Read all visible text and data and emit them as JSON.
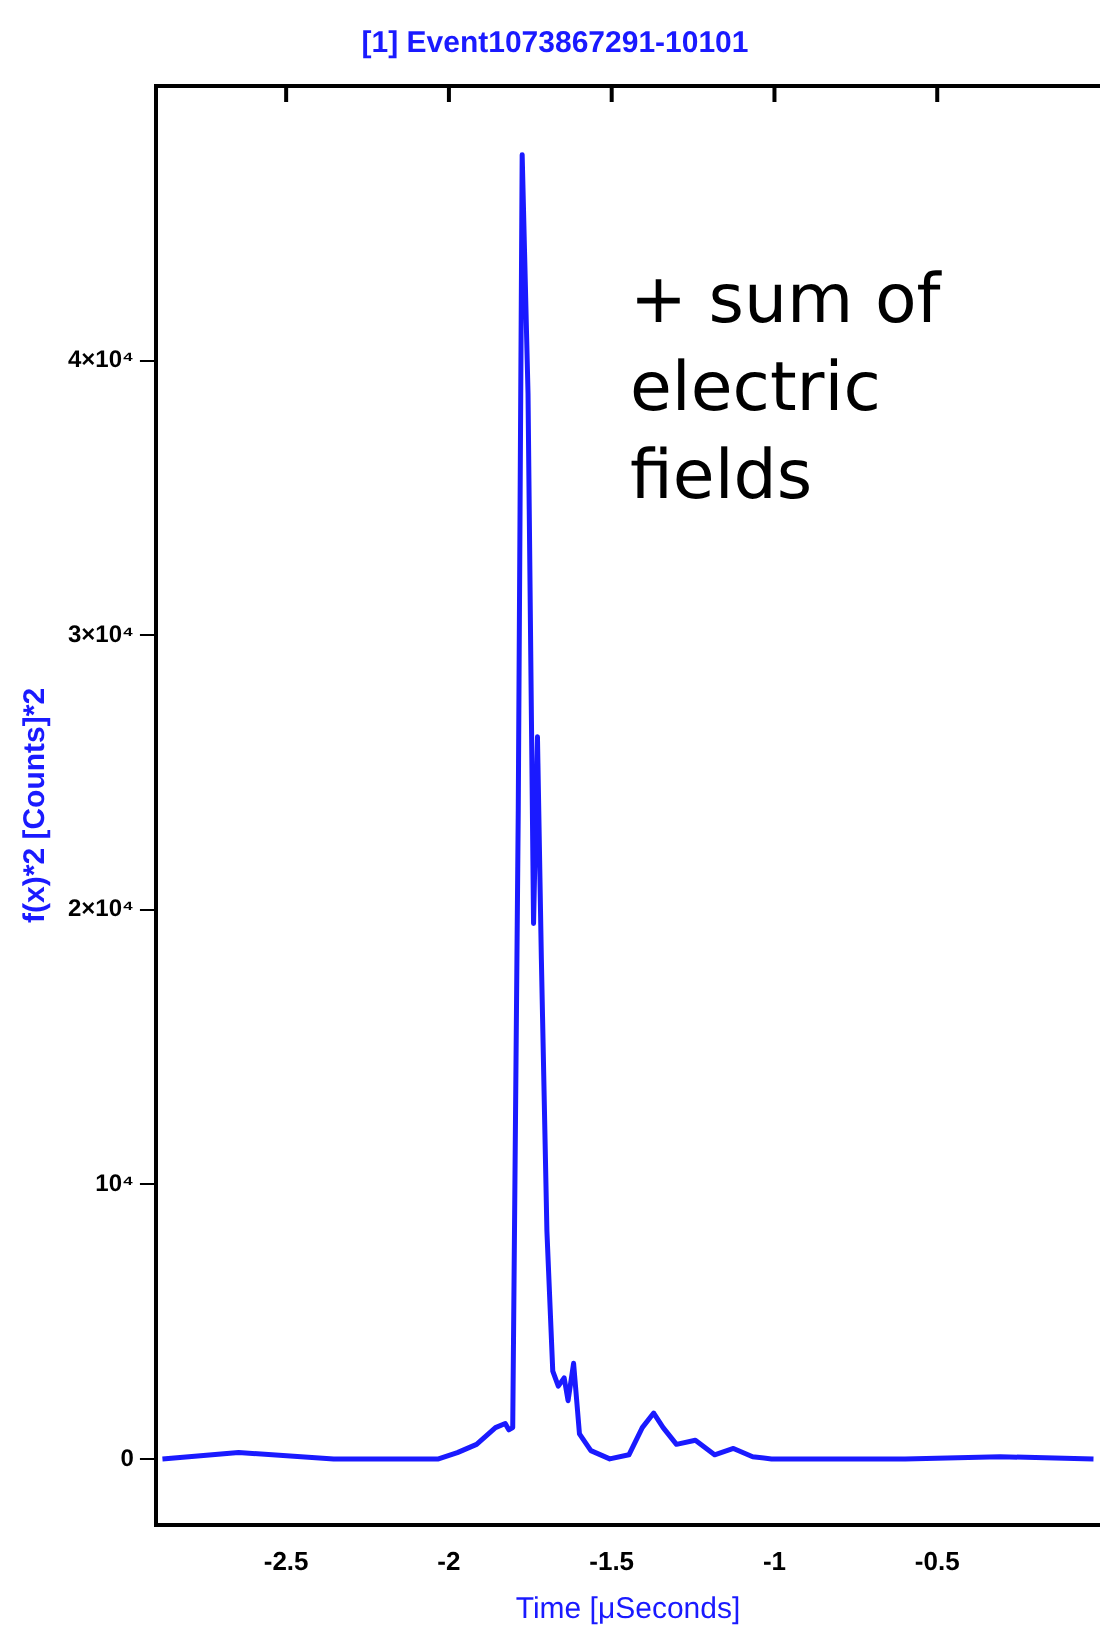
{
  "chart_data": {
    "type": "line",
    "title": "[1] Event1073867291-10101",
    "xlabel": "Time [μSeconds]",
    "ylabel": "f(x)*2 [Counts]*2",
    "annotations": [
      "+ sum of electric fields"
    ],
    "x": [
      -2.88,
      -2.646,
      -2.354,
      -2.032,
      -1.974,
      -1.915,
      -1.857,
      -1.827,
      -1.816,
      -1.804,
      -1.787,
      -1.775,
      -1.757,
      -1.74,
      -1.728,
      -1.716,
      -1.699,
      -1.681,
      -1.664,
      -1.646,
      -1.634,
      -1.617,
      -1.599,
      -1.564,
      -1.506,
      -1.447,
      -1.406,
      -1.371,
      -1.342,
      -1.301,
      -1.243,
      -1.184,
      -1.126,
      -1.067,
      -1.009,
      -0.599,
      -0.307,
      -0.02
    ],
    "series": [
      {
        "color": "#1a1aff",
        "values": [
          0,
          230,
          0,
          0,
          230,
          530,
          1140,
          1290,
          1060,
          1140,
          23600,
          47500,
          38800,
          19500,
          26300,
          18200,
          8300,
          3200,
          2650,
          2950,
          2120,
          3480,
          910,
          300,
          0,
          150,
          1140,
          1670,
          1140,
          530,
          680,
          150,
          380,
          80,
          0,
          0,
          80,
          0
        ]
      }
    ],
    "xlim": [
      -2.9,
      0
    ],
    "xticks": [
      -2.5,
      -2,
      -1.5,
      -1,
      -0.5
    ],
    "ylim": [
      -2400,
      50000
    ],
    "yticks": [
      0,
      {
        "value": 10000,
        "label": "10⁴"
      },
      {
        "value": 20000,
        "label": "2×10⁴"
      },
      {
        "value": 30000,
        "label": "3×10⁴"
      },
      {
        "value": 40000,
        "label": "4×10⁴"
      }
    ],
    "grid": false,
    "legend": false,
    "marker": "none",
    "line_style": "solid"
  }
}
